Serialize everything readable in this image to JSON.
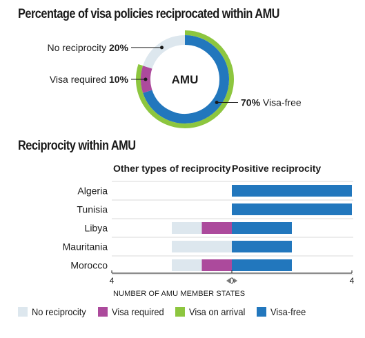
{
  "titles": {
    "donut": "Percentage of visa policies reciprocated within AMU",
    "bars": "Reciprocity within AMU"
  },
  "colors": {
    "no_reciprocity": "#dde7ee",
    "visa_required": "#ac4a9c",
    "visa_on_arrival": "#8dc63f",
    "visa_free": "#2277bd"
  },
  "legend": [
    {
      "label": "No reciprocity",
      "key": "no_reciprocity"
    },
    {
      "label": "Visa required",
      "key": "visa_required"
    },
    {
      "label": "Visa on arrival",
      "key": "visa_on_arrival"
    },
    {
      "label": "Visa-free",
      "key": "visa_free"
    }
  ],
  "chart_data": [
    {
      "type": "pie",
      "title": "Percentage of visa policies reciprocated within AMU",
      "center_label": "AMU",
      "slices": [
        {
          "name": "Visa-free",
          "value": 70,
          "label_pct": "70%",
          "label_text": "Visa-free",
          "key": "visa_free"
        },
        {
          "name": "Visa required",
          "value": 10,
          "label_pct": "10%",
          "label_text": "Visa required",
          "key": "visa_required"
        },
        {
          "name": "No reciprocity",
          "value": 20,
          "label_pct": "20%",
          "label_text": "No reciprocity",
          "key": "no_reciprocity"
        }
      ],
      "outer_ring": {
        "name": "Visa on arrival",
        "value": 80,
        "key": "visa_on_arrival"
      }
    },
    {
      "type": "bar",
      "title": "Reciprocity within AMU",
      "left_header": "Other types of reciprocity",
      "right_header": "Positive reciprocity",
      "xlabel": "NUMBER OF AMU MEMBER STATES",
      "tick_labels": {
        "left": "4",
        "center": "0",
        "right": "4"
      },
      "xlim": [
        -4,
        4
      ],
      "categories": [
        "Algeria",
        "Tunisia",
        "Libya",
        "Mauritania",
        "Morocco"
      ],
      "series": [
        {
          "name": "Visa-free",
          "key": "visa_free",
          "side": "positive",
          "values": [
            4,
            4,
            2,
            2,
            2
          ]
        },
        {
          "name": "Visa required",
          "key": "visa_required",
          "side": "negative",
          "values": [
            0,
            0,
            1,
            0,
            1
          ]
        },
        {
          "name": "No reciprocity",
          "key": "no_reciprocity",
          "side": "negative",
          "values": [
            0,
            0,
            1,
            2,
            1
          ]
        }
      ]
    }
  ]
}
